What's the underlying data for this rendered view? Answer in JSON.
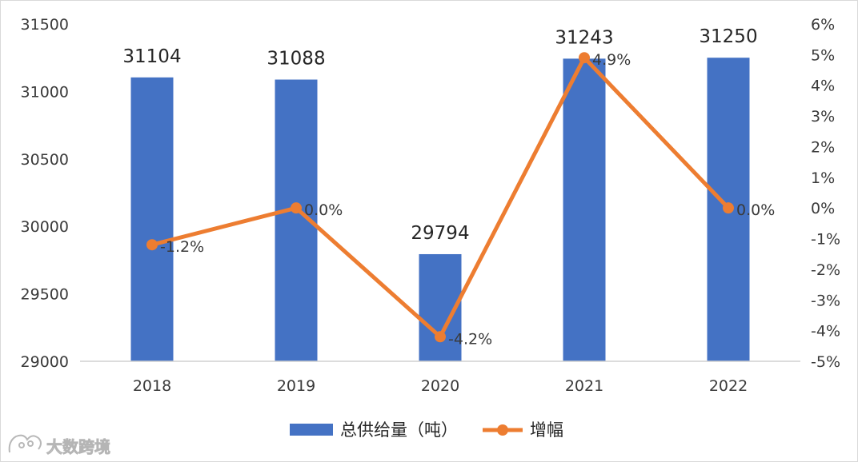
{
  "chart_data": {
    "type": "bar+line",
    "categories": [
      "2018",
      "2019",
      "2020",
      "2021",
      "2022"
    ],
    "series": [
      {
        "name": "总供给量（吨）",
        "type": "bar",
        "axis": "left",
        "color": "#4472C4",
        "values": [
          31104,
          31088,
          29794,
          31243,
          31250
        ],
        "labels": [
          "31104",
          "31088",
          "29794",
          "31243",
          "31250"
        ]
      },
      {
        "name": "增幅",
        "type": "line",
        "axis": "right",
        "color": "#ED7D31",
        "values": [
          -1.2,
          0.0,
          -4.2,
          4.9,
          0.0
        ],
        "labels": [
          "-1.2%",
          "0.0%",
          "-4.2%",
          "4.9%",
          "0.0%"
        ]
      }
    ],
    "y_left": {
      "ylim": [
        29000,
        31500
      ],
      "ticks": [
        "29000",
        "29500",
        "30000",
        "30500",
        "31000",
        "31500"
      ]
    },
    "y_right": {
      "ylim": [
        -5,
        6
      ],
      "ticks": [
        "-5%",
        "-4%",
        "-3%",
        "-2%",
        "-1%",
        "0%",
        "1%",
        "2%",
        "3%",
        "4%",
        "5%",
        "6%"
      ]
    },
    "legend_position": "bottom",
    "grid": false
  },
  "watermark": {
    "text": "大数跨境"
  }
}
